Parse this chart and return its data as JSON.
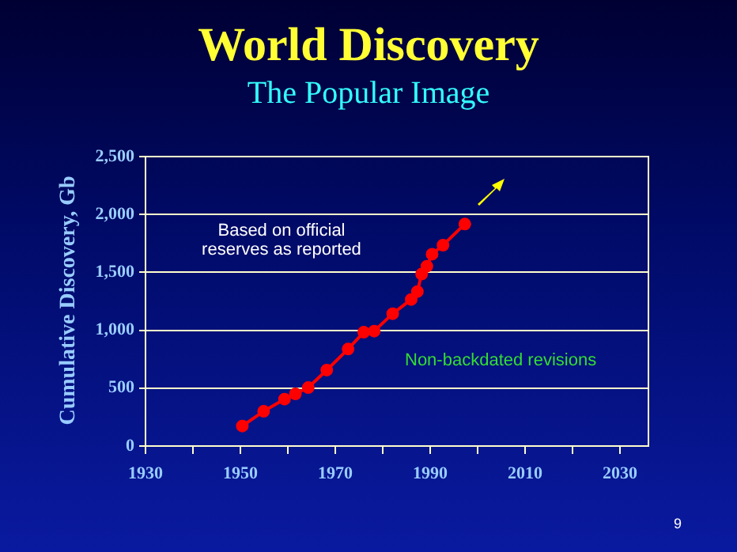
{
  "chart_data": {
    "type": "line",
    "title": "World Discovery",
    "subtitle": "The Popular Image",
    "ylabel": "Cumulative Discovery, Gb",
    "annotations": [
      "Based on official reserves as reported",
      "Non-backdated revisions",
      "9"
    ],
    "x": [
      1950.4,
      1954.9,
      1959.3,
      1961.6,
      1964.3,
      1968.2,
      1972.7,
      1976,
      1978.2,
      1982.1,
      1986,
      1987.3,
      1988.2,
      1989.3,
      1990.4,
      1992.7,
      1997.3
    ],
    "series": [
      {
        "color": "#ff0000",
        "values": [
          173,
          300,
          405,
          451,
          505,
          656,
          838,
          983,
          993,
          1143,
          1266,
          1334,
          1485,
          1553,
          1657,
          1735,
          1917
        ]
      }
    ],
    "xlim": [
      1930,
      2036
    ],
    "xticks": [
      1930,
      {
        "value": 1940,
        "label": null
      },
      1950,
      {
        "value": 1960,
        "label": null
      },
      1970,
      {
        "value": 1980,
        "label": null
      },
      1990,
      {
        "value": 2000,
        "label": null
      },
      2010,
      {
        "value": 2020,
        "label": null
      },
      2030
    ],
    "ylim": [
      0,
      2500
    ],
    "yticks": [
      {
        "value": 0,
        "label": "0"
      },
      {
        "value": 500,
        "label": "500"
      },
      {
        "value": 1000,
        "label": "1,000"
      },
      {
        "value": 1500,
        "label": "1,500"
      },
      {
        "value": 2000,
        "label": "2,000"
      },
      {
        "value": 2500,
        "label": "2,500"
      }
    ],
    "grid": "y",
    "legend": false,
    "marker": "circle",
    "line_style": "solid"
  }
}
